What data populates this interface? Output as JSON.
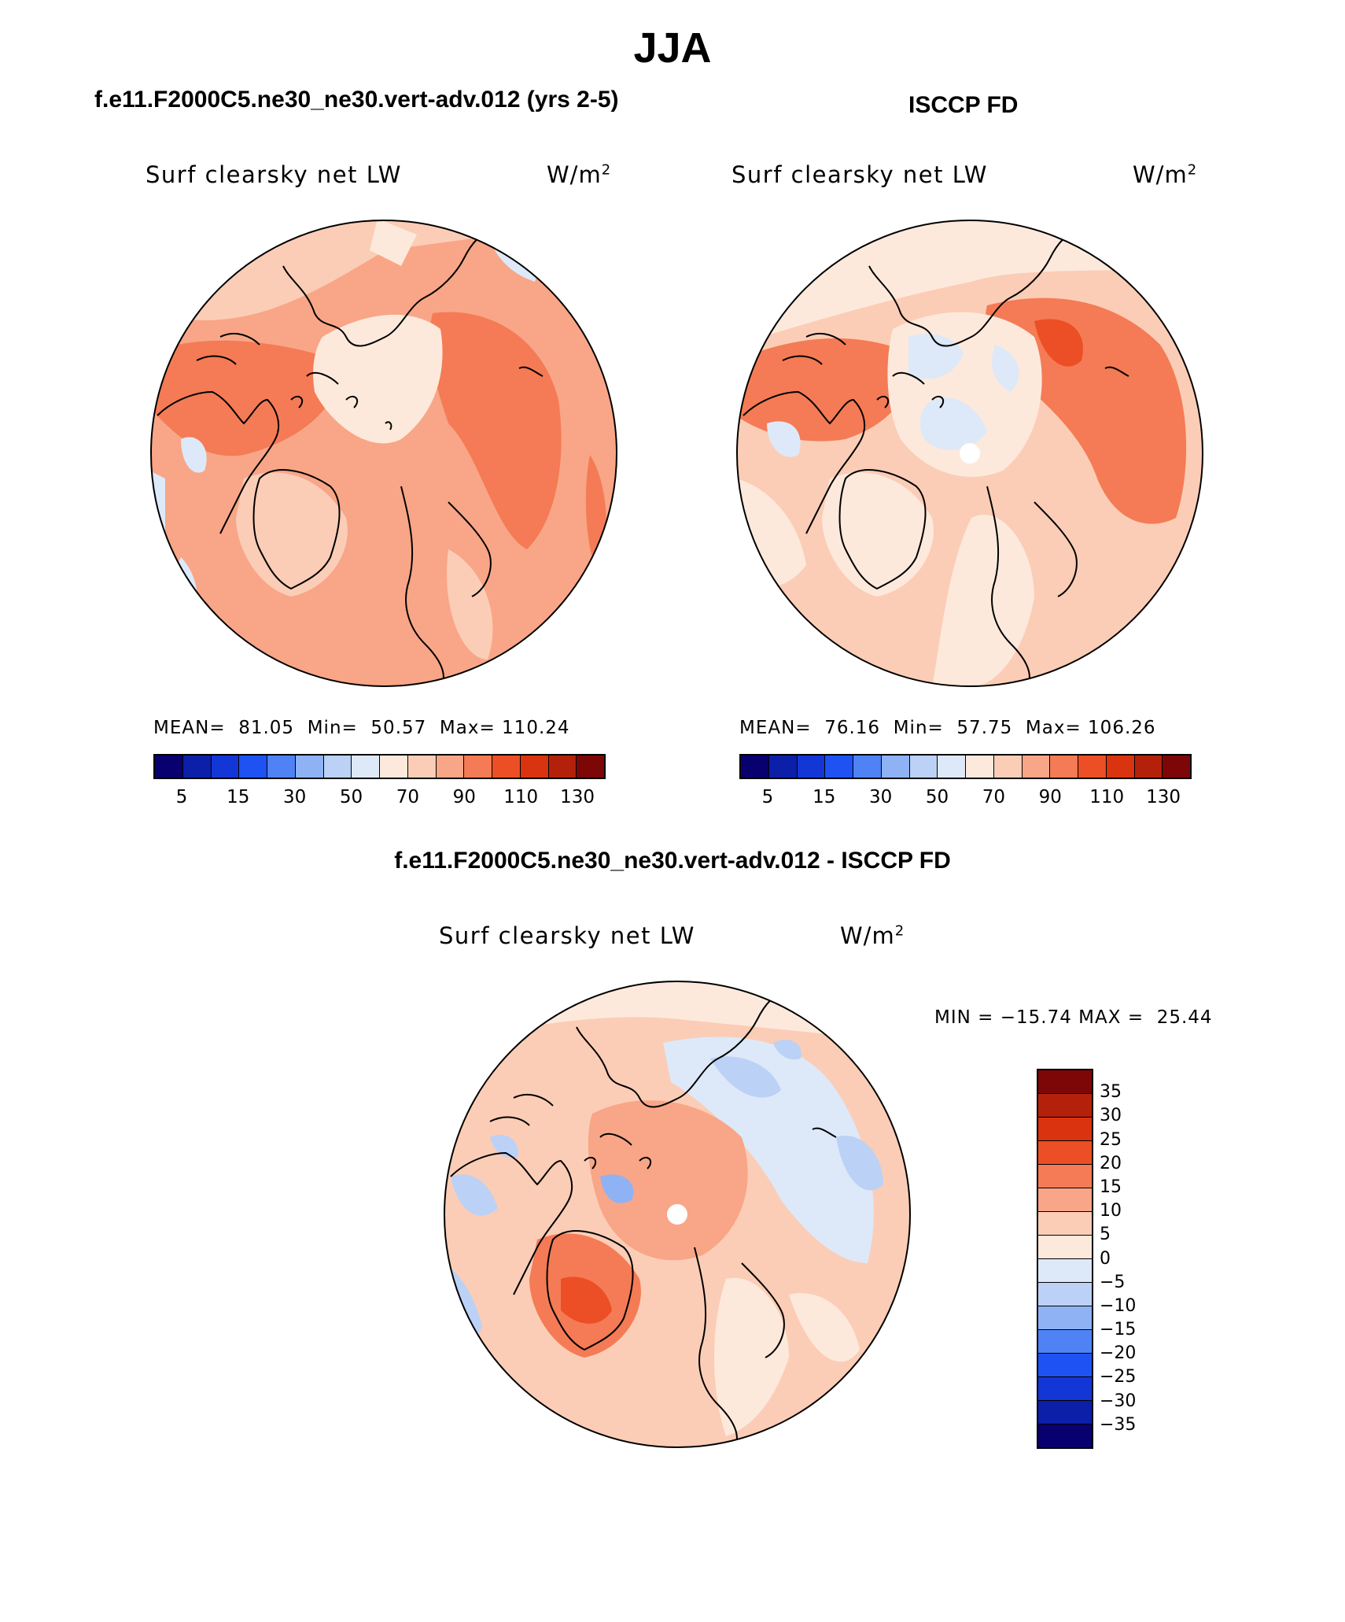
{
  "season": "JJA",
  "panels": {
    "model": {
      "title": "f.e11.F2000C5.ne30_ne30.vert-adv.012 (yrs 2-5)",
      "label": "Surf clearsky net LW",
      "units": "W/m",
      "units_sup": "2",
      "mean_label": "MEAN=",
      "mean": "81.05",
      "min_label": "Min=",
      "min": "50.57",
      "max_label": "Max=",
      "max": "110.24"
    },
    "obs": {
      "title": "ISCCP FD",
      "label": "Surf clearsky net LW",
      "units": "W/m",
      "units_sup": "2",
      "mean_label": "MEAN=",
      "mean": "76.16",
      "min_label": "Min=",
      "min": "57.75",
      "max_label": "Max=",
      "max": "106.26"
    },
    "diff": {
      "title": "f.e11.F2000C5.ne30_ne30.vert-adv.012 - ISCCP FD",
      "label": "Surf clearsky net LW",
      "units": "W/m",
      "units_sup": "2",
      "min_label": "MIN =",
      "min": "−15.74",
      "max_label": "MAX =",
      "max": "25.44"
    }
  },
  "colorbar_abs": {
    "colors": [
      "#08006e",
      "#0c1fa8",
      "#1336d6",
      "#1f52f2",
      "#4f82f5",
      "#8fb2f4",
      "#bcd1f6",
      "#dde9f8",
      "#fde9db",
      "#fbcdb6",
      "#f8a687",
      "#f47b55",
      "#ec4f25",
      "#d9330f",
      "#b4210a",
      "#7d0707"
    ],
    "ticks": [
      "5",
      "15",
      "30",
      "50",
      "70",
      "90",
      "110",
      "130"
    ]
  },
  "colorbar_diff": {
    "colors": [
      "#7d0707",
      "#b4210a",
      "#d9330f",
      "#ec4f25",
      "#f47b55",
      "#f8a687",
      "#fbcdb6",
      "#fde9db",
      "#dde9f8",
      "#bcd1f6",
      "#8fb2f4",
      "#4f82f5",
      "#1f52f2",
      "#1336d6",
      "#0c1fa8",
      "#08006e"
    ],
    "ticks": [
      "35",
      "30",
      "25",
      "20",
      "15",
      "10",
      "5",
      "0",
      "−5",
      "−10",
      "−15",
      "−20",
      "−25",
      "−30",
      "−35"
    ]
  }
}
